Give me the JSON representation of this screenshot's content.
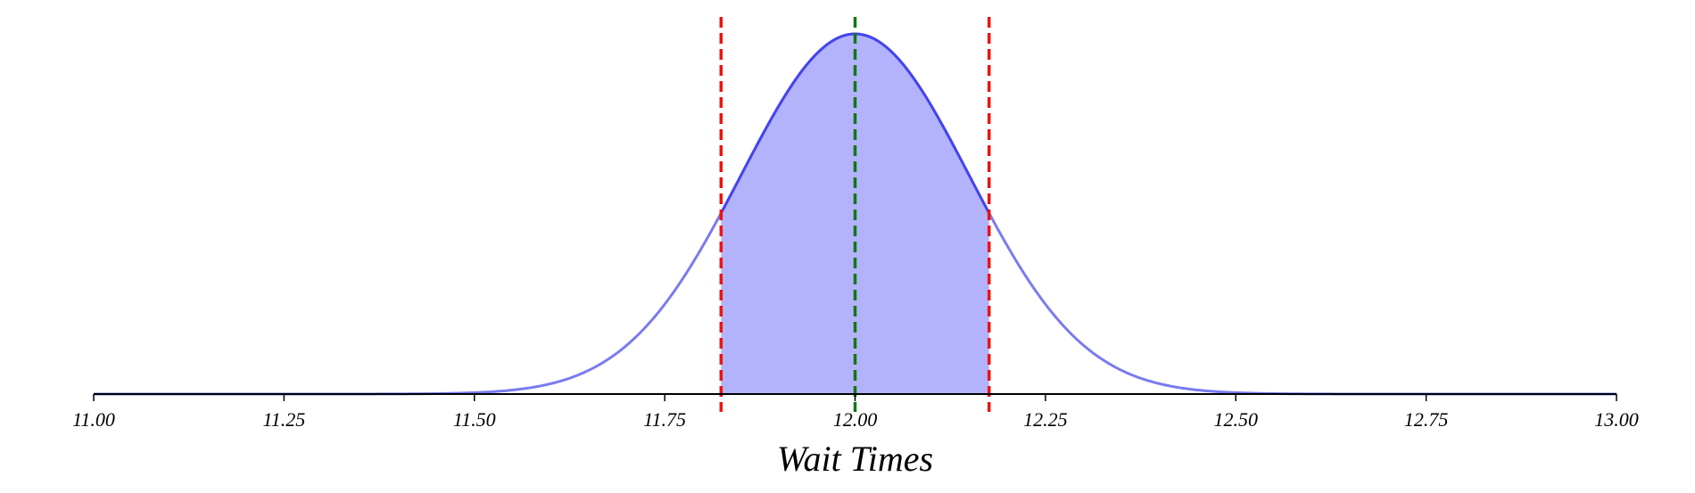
{
  "chart_data": {
    "type": "area",
    "title": "",
    "xlabel": "Wait Times",
    "ylabel": "",
    "xlim": [
      11.0,
      13.0
    ],
    "x_ticks": [
      11.0,
      11.25,
      11.5,
      11.75,
      12.0,
      12.25,
      12.5,
      12.75,
      13.0
    ],
    "x_tick_labels": [
      "11.00",
      "11.25",
      "11.50",
      "11.75",
      "12.00",
      "12.25",
      "12.50",
      "12.75",
      "13.00"
    ],
    "distribution": {
      "kind": "normal",
      "mean": 12.0,
      "sd": 0.15
    },
    "shaded_interval": [
      11.824,
      12.176
    ],
    "vertical_lines": [
      {
        "x": 11.824,
        "color": "#ee1111",
        "style": "dashed"
      },
      {
        "x": 12.0,
        "color": "#117711",
        "style": "dashed"
      },
      {
        "x": 12.176,
        "color": "#ee1111",
        "style": "dashed"
      }
    ],
    "curve_color": "#7b7bef",
    "curve_color_dark": "#4444ee",
    "fill_color": "#b3b3fc",
    "grid": false,
    "legend": "none"
  }
}
